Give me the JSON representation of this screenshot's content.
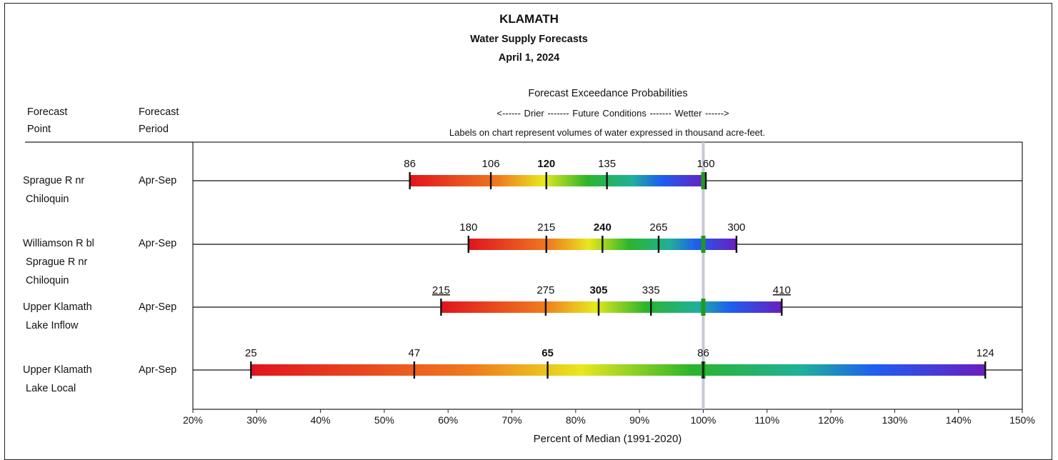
{
  "header": {
    "title": "KLAMATH",
    "subtitle": "Water Supply Forecasts",
    "date": "April 1, 2024",
    "exceedance_title": "Forecast Exceedance Probabilities",
    "conditions_line": "<------ Drier -------     Future Conditions    ------- Wetter ------>",
    "labels_note": "Labels on chart represent volumes of water expressed in thousand acre-feet.",
    "col_point_line1": "Forecast",
    "col_point_line2": "Point",
    "col_period_line1": "Forecast",
    "col_period_line2": "Period"
  },
  "rows": [
    {
      "point_lines": [
        "Sprague R nr",
        " Chiloquin"
      ],
      "period": "Apr-Sep"
    },
    {
      "point_lines": [
        "Williamson R bl",
        " Sprague R nr",
        " Chiloquin"
      ],
      "period": "Apr-Sep"
    },
    {
      "point_lines": [
        "Upper Klamath",
        " Lake Inflow"
      ],
      "period": "Apr-Sep"
    },
    {
      "point_lines": [
        "Upper Klamath",
        " Lake Local"
      ],
      "period": "Apr-Sep"
    }
  ],
  "chart_data": {
    "type": "bar",
    "orientation": "horizontal",
    "xlabel": "Percent of Median (1991-2020)",
    "xlim": [
      20,
      150
    ],
    "x_ticks": [
      "20%",
      "30%",
      "40%",
      "50%",
      "60%",
      "70%",
      "80%",
      "90%",
      "100%",
      "110%",
      "120%",
      "130%",
      "140%",
      "150%"
    ],
    "reference_line_percent": 100,
    "colors": {
      "dry": "#e0141e",
      "mid": "#e8e81e",
      "green": "#2bb52b",
      "blue": "#1e5ef0",
      "wet": "#6a1ebe",
      "reference": "#1f9a1f"
    },
    "series": [
      {
        "marks": [
          {
            "value": "86",
            "percent": 54.0,
            "bold": false,
            "underline": false
          },
          {
            "value": "106",
            "percent": 66.7,
            "bold": false,
            "underline": false
          },
          {
            "value": "120",
            "percent": 75.4,
            "bold": true,
            "underline": false
          },
          {
            "value": "135",
            "percent": 84.9,
            "bold": false,
            "underline": false
          },
          {
            "value": "160",
            "percent": 100.4,
            "bold": false,
            "underline": false
          }
        ]
      },
      {
        "marks": [
          {
            "value": "180",
            "percent": 63.2,
            "bold": false,
            "underline": false
          },
          {
            "value": "215",
            "percent": 75.4,
            "bold": false,
            "underline": false
          },
          {
            "value": "240",
            "percent": 84.2,
            "bold": true,
            "underline": false
          },
          {
            "value": "265",
            "percent": 93.0,
            "bold": false,
            "underline": false
          },
          {
            "value": "300",
            "percent": 105.2,
            "bold": false,
            "underline": false
          }
        ]
      },
      {
        "marks": [
          {
            "value": "215",
            "percent": 58.9,
            "bold": false,
            "underline": true
          },
          {
            "value": "275",
            "percent": 75.3,
            "bold": false,
            "underline": false
          },
          {
            "value": "305",
            "percent": 83.6,
            "bold": true,
            "underline": false
          },
          {
            "value": "335",
            "percent": 91.8,
            "bold": false,
            "underline": false
          },
          {
            "value": "410",
            "percent": 112.3,
            "bold": false,
            "underline": true
          }
        ]
      },
      {
        "marks": [
          {
            "value": "25",
            "percent": 29.1,
            "bold": false,
            "underline": false
          },
          {
            "value": "47",
            "percent": 54.7,
            "bold": false,
            "underline": false
          },
          {
            "value": "65",
            "percent": 75.6,
            "bold": true,
            "underline": false
          },
          {
            "value": "86",
            "percent": 100.0,
            "bold": false,
            "underline": false
          },
          {
            "value": "124",
            "percent": 144.2,
            "bold": false,
            "underline": false
          }
        ]
      }
    ]
  }
}
